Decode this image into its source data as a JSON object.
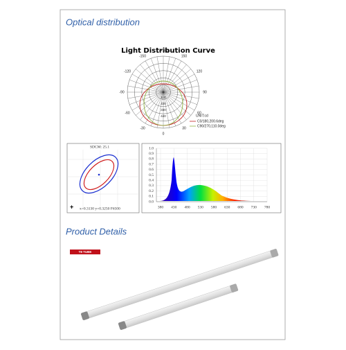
{
  "optical": {
    "heading": "Optical distribution",
    "polar": {
      "title": "Light Distribution Curve",
      "angle_labels": [
        "-/+180",
        "150",
        "120",
        "90",
        "60",
        "30",
        "0",
        "-30",
        "-60",
        "-90",
        "-120",
        "-150"
      ],
      "radial_labels": [
        "110",
        "220",
        "330",
        "440"
      ],
      "unit": "UNIT:cd",
      "legend": [
        "C0/180,200.6deg",
        "C90/270,110.0deg"
      ]
    },
    "ellipse": {
      "header": "SDCM:  25.1",
      "footer": "x=0.3130 y=0.3250 F6500"
    },
    "spectrum": {
      "yticks": [
        "1.0",
        "0.9",
        "0.8",
        "0.7",
        "0.6",
        "0.5",
        "0.4",
        "0.3",
        "0.2",
        "0.1",
        "0.0"
      ],
      "xticks": [
        "380",
        "430",
        "480",
        "530",
        "580",
        "630",
        "680",
        "730",
        "780"
      ]
    }
  },
  "product": {
    "heading": "Product Details",
    "tag": "T8 TUBE"
  }
}
